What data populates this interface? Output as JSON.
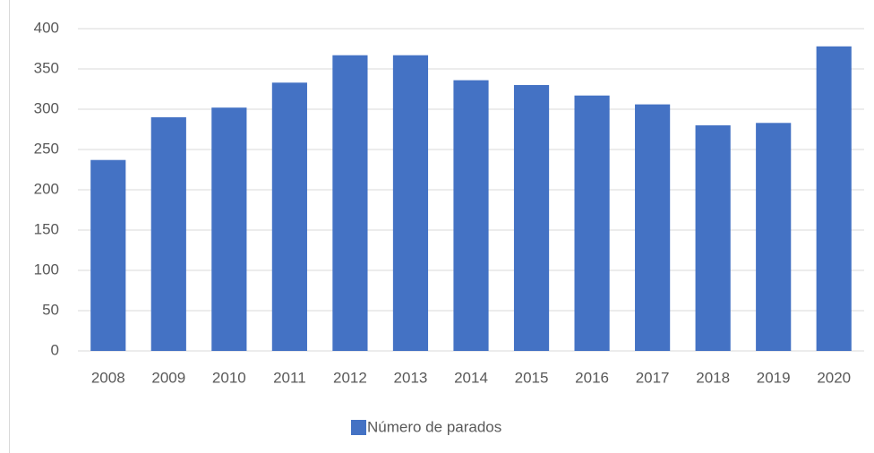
{
  "chart_data": {
    "type": "bar",
    "categories": [
      "2008",
      "2009",
      "2010",
      "2011",
      "2012",
      "2013",
      "2014",
      "2015",
      "2016",
      "2017",
      "2018",
      "2019",
      "2020"
    ],
    "series": [
      {
        "name": "Número de parados",
        "color": "#4472c4",
        "values": [
          237,
          290,
          302,
          333,
          367,
          367,
          336,
          330,
          317,
          306,
          280,
          283,
          378
        ]
      }
    ],
    "ylim": [
      0,
      400
    ],
    "yticks": [
      0,
      50,
      100,
      150,
      200,
      250,
      300,
      350,
      400
    ],
    "grid": true,
    "legend": "bottom"
  }
}
